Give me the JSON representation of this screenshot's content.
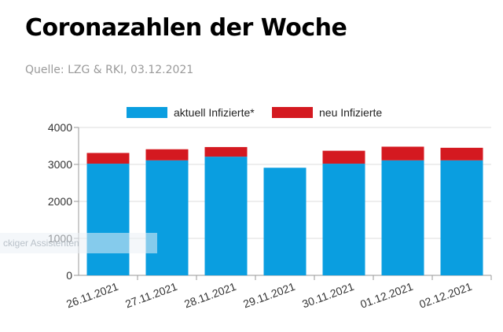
{
  "header": {
    "title": "Coronazahlen der Woche",
    "source": "Quelle: LZG & RKI, 03.12.2021"
  },
  "overlay": {
    "text": "ckiger Assistenten"
  },
  "colors": {
    "series_infected": "#0a9ee0",
    "series_new": "#d41920",
    "grid": "#dddddd",
    "axis": "#999999"
  },
  "chart_data": {
    "type": "bar",
    "stacked": true,
    "categories": [
      "26.11.2021",
      "27.11.2021",
      "28.11.2021",
      "29.11.2021",
      "30.11.2021",
      "01.12.2021",
      "02.12.2021"
    ],
    "series": [
      {
        "name": "aktuell Infizierte*",
        "values": [
          3020,
          3110,
          3210,
          2910,
          3020,
          3110,
          3110
        ]
      },
      {
        "name": "neu Infizierte",
        "values": [
          290,
          300,
          260,
          0,
          350,
          370,
          340
        ]
      }
    ],
    "ylim": [
      0,
      4000
    ],
    "yticks": [
      0,
      1000,
      2000,
      3000,
      4000
    ],
    "grid": true,
    "legend_position": "top-center"
  }
}
